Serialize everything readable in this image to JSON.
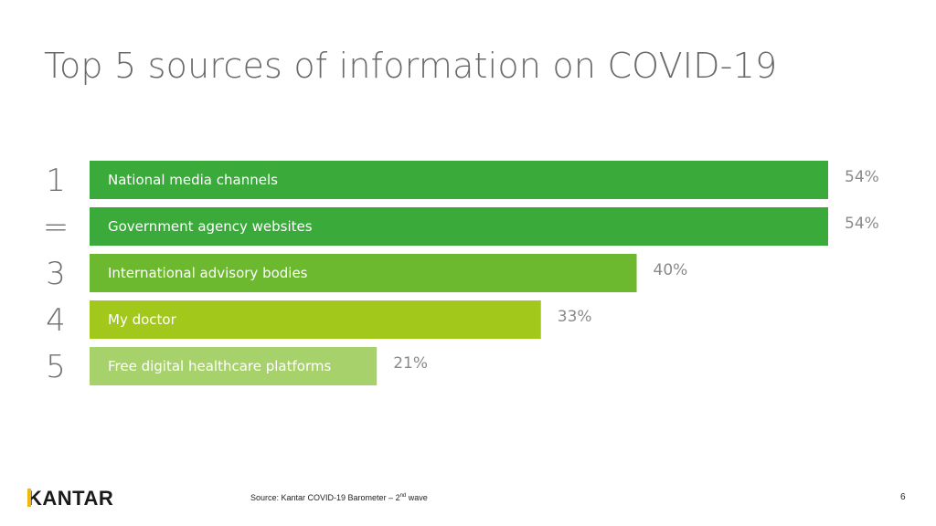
{
  "chart_data": {
    "type": "bar",
    "orientation": "horizontal",
    "title": "Top 5 sources of information on COVID-19",
    "ranks": [
      "1",
      "=",
      "3",
      "4",
      "5"
    ],
    "categories": [
      "National media channels",
      "Government agency websites",
      "International advisory bodies",
      "My doctor",
      "Free digital healthcare platforms"
    ],
    "values": [
      54,
      54,
      40,
      33,
      21
    ],
    "value_labels": [
      "54%",
      "54%",
      "40%",
      "33%",
      "21%"
    ],
    "unit": "%",
    "bar_colors": [
      "#3aaa3a",
      "#3aaa3a",
      "#6cb82e",
      "#a3c81c",
      "#a7d16a"
    ]
  },
  "footer": {
    "logo": "KANTAR",
    "source_prefix": "Source: Kantar COVID-19 Barometer – 2",
    "source_sup": "nd",
    "source_suffix": " wave",
    "page_number": "6"
  }
}
